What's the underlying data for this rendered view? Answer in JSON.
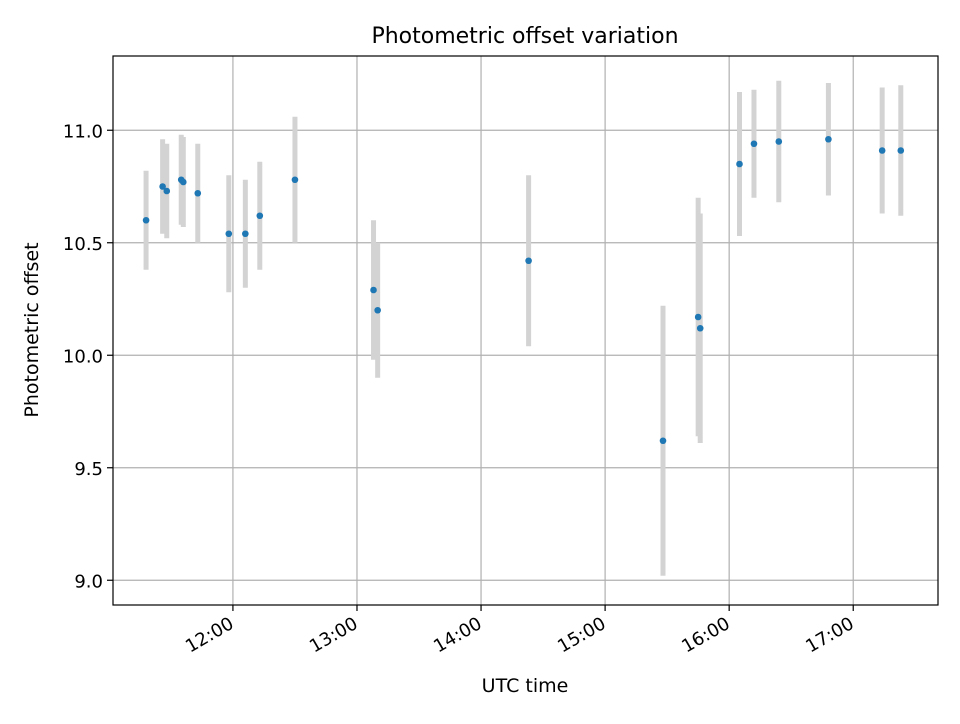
{
  "chart_data": {
    "type": "scatter",
    "title": "Photometric offset variation",
    "xlabel": "UTC time",
    "ylabel": "Photometric offset",
    "x_axis": "time",
    "x_ticks": [
      "12:00",
      "13:00",
      "14:00",
      "15:00",
      "16:00",
      "17:00"
    ],
    "y_ticks": [
      "9.0",
      "9.5",
      "10.0",
      "10.5",
      "11.0"
    ],
    "xlim": [
      "11:02",
      "17:41"
    ],
    "ylim": [
      8.89,
      11.33
    ],
    "grid": true,
    "legend": "none",
    "colors": {
      "point": "#1f77b4",
      "errorbar": "#d3d3d3",
      "grid": "#b0b0b0",
      "axis": "#000000"
    },
    "points": [
      {
        "x": "11:18",
        "y": 10.6,
        "err": 0.22
      },
      {
        "x": "11:26",
        "y": 10.75,
        "err": 0.21
      },
      {
        "x": "11:28",
        "y": 10.73,
        "err": 0.21
      },
      {
        "x": "11:35",
        "y": 10.78,
        "err": 0.2
      },
      {
        "x": "11:36",
        "y": 10.77,
        "err": 0.2
      },
      {
        "x": "11:43",
        "y": 10.72,
        "err": 0.22
      },
      {
        "x": "11:58",
        "y": 10.54,
        "err": 0.26
      },
      {
        "x": "12:06",
        "y": 10.54,
        "err": 0.24
      },
      {
        "x": "12:13",
        "y": 10.62,
        "err": 0.24
      },
      {
        "x": "12:30",
        "y": 10.78,
        "err": 0.28
      },
      {
        "x": "13:08",
        "y": 10.29,
        "err": 0.31
      },
      {
        "x": "13:10",
        "y": 10.2,
        "err": 0.3
      },
      {
        "x": "14:23",
        "y": 10.42,
        "err": 0.38
      },
      {
        "x": "15:28",
        "y": 9.62,
        "err": 0.6
      },
      {
        "x": "15:45",
        "y": 10.17,
        "err": 0.53
      },
      {
        "x": "15:46",
        "y": 10.12,
        "err": 0.51
      },
      {
        "x": "16:05",
        "y": 10.85,
        "err": 0.32
      },
      {
        "x": "16:12",
        "y": 10.94,
        "err": 0.24
      },
      {
        "x": "16:24",
        "y": 10.95,
        "err": 0.27
      },
      {
        "x": "16:48",
        "y": 10.96,
        "err": 0.25
      },
      {
        "x": "17:14",
        "y": 10.91,
        "err": 0.28
      },
      {
        "x": "17:23",
        "y": 10.91,
        "err": 0.29
      }
    ]
  }
}
